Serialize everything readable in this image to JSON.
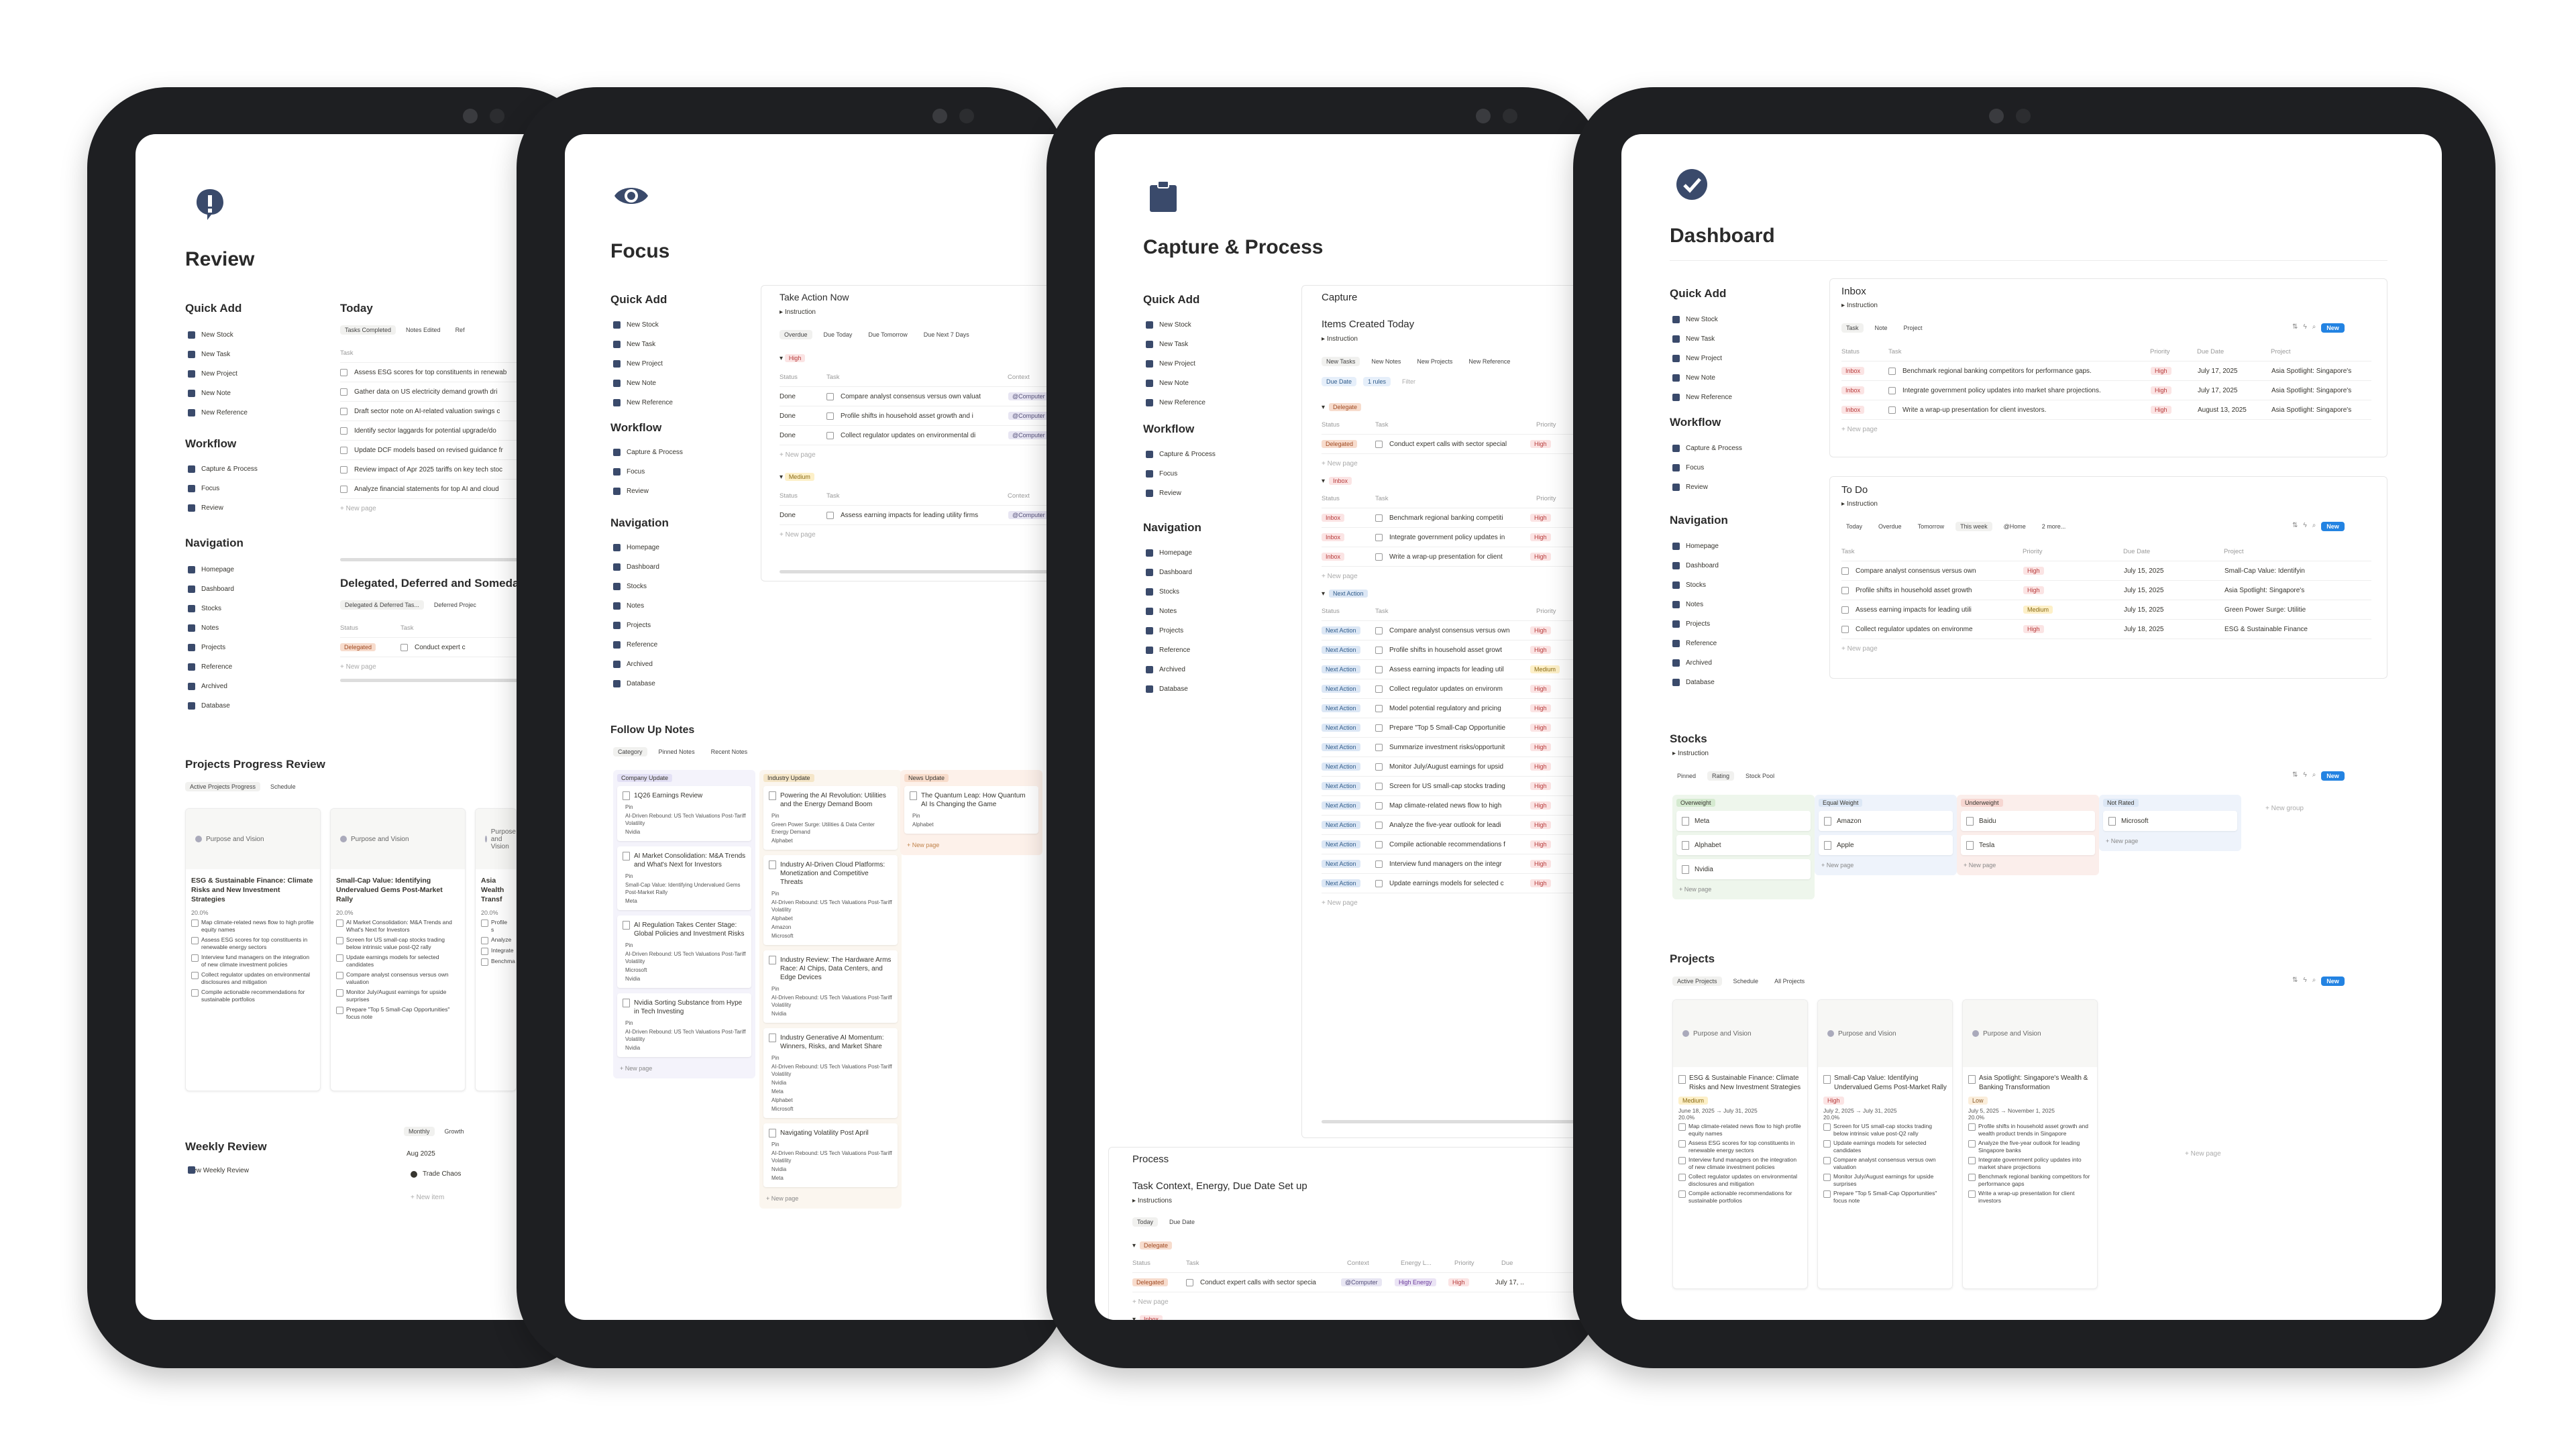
{
  "quick_add": [
    "New Stock",
    "New Task",
    "New Project",
    "New Note",
    "New Reference"
  ],
  "workflow": [
    "Capture & Process",
    "Focus",
    "Review"
  ],
  "navigation": [
    "Homepage",
    "Dashboard",
    "Stocks",
    "Notes",
    "Projects",
    "Reference",
    "Archived",
    "Database"
  ],
  "labels": {
    "quick_add": "Quick Add",
    "workflow": "Workflow",
    "navigation": "Navigation",
    "new_page": "+ New page",
    "instruction": "Instruction",
    "instructions": "Instructions",
    "new_group": "+ New group",
    "new_item": "+ New item",
    "new": "New",
    "status": "Status",
    "task": "Task",
    "priority": "Priority",
    "context": "Context",
    "energy": "Energy L...",
    "due": "Due",
    "due_date": "Due Date",
    "project": "Project",
    "high": "High",
    "medium": "Medium",
    "low": "Low",
    "done": "Done",
    "inbox": "Inbox",
    "delegate": "Delegate",
    "delegated": "Delegated",
    "next_action": "Next Action",
    "computer": "@Computer",
    "high_energy": "High Energy",
    "purpose": "Purpose and Vision"
  },
  "review": {
    "title": "Review",
    "today": "Today",
    "today_tabs": [
      "Tasks Completed",
      "Notes Edited",
      "Ref"
    ],
    "today_tasks": [
      "Assess ESG scores for top constituents in renewab",
      "Gather data on US electricity demand growth dri",
      "Draft sector note on AI-related valuation swings c",
      "Identify sector laggards for potential upgrade/do",
      "Update DCF models based on revised guidance fr",
      "Review impact of Apr 2025 tariffs on key tech stoc",
      "Analyze financial statements for top AI and cloud"
    ],
    "delegated_title": "Delegated, Deferred and Someday",
    "delegated_tabs": [
      "Delegated & Deferred Tas...",
      "Deferred Projec"
    ],
    "delegated_task": "Conduct expert c",
    "projects_title": "Projects Progress Review",
    "projects_tabs": [
      "Active Projects Progress",
      "Schedule"
    ],
    "proj_cards": [
      {
        "title": "ESG & Sustainable Finance: Climate Risks and New Investment Strategies",
        "pct": "20.0%",
        "items": [
          "Map climate-related news flow to high profile equity names",
          "Assess ESG scores for top constituents in renewable energy sectors",
          "Interview fund managers on the integration of new climate investment policies",
          "Collect regulator updates on environmental disclosures and mitigation",
          "Compile actionable recommendations for sustainable portfolios"
        ]
      },
      {
        "title": "Small-Cap Value: Identifying Undervalued Gems Post-Market Rally",
        "pct": "20.0%",
        "items": [
          "AI Market Consolidation: M&A Trends and What's Next for Investors",
          "Screen for US small-cap stocks trading below intrinsic value post-Q2 rally",
          "Update earnings models for selected candidates",
          "Compare analyst consensus versus own valuation",
          "Monitor July/August earnings for upside surprises",
          "Prepare \"Top 5 Small-Cap Opportunities\" focus note"
        ]
      },
      {
        "title": "Asia Wealth Transf",
        "pct": "20.0%",
        "items": [
          "Profile s",
          "Analyze",
          "Integrate",
          "Benchma"
        ]
      }
    ],
    "weekly_title": "Weekly Review",
    "weekly_btn": "New Weekly Review",
    "weekly_tabs": [
      "Monthly",
      "Growth"
    ],
    "weekly_month": "Aug 2025",
    "weekly_item": "Trade Chaos"
  },
  "focus": {
    "title": "Focus",
    "tan_title": "Take Action Now",
    "tan_tabs": [
      "Overdue",
      "Due Today",
      "Due Tomorrow",
      "Due Next 7 Days"
    ],
    "high_tasks": [
      "Compare analyst consensus versus own valuat",
      "Profile shifts in household asset growth and i",
      "Collect regulator updates on environmental di"
    ],
    "medium_task": "Assess earning impacts for leading utility firms",
    "fun_title": "Follow Up Notes",
    "fun_tabs": [
      "Category",
      "Pinned Notes",
      "Recent Notes"
    ],
    "cols": [
      {
        "name": "Company Update",
        "cards": [
          {
            "t": "1Q26 Earnings Review",
            "m": [
              "Pin",
              "AI-Driven Rebound: US Tech Valuations Post-Tariff Volatility",
              "Nvidia"
            ]
          },
          {
            "t": "AI Market Consolidation: M&A Trends and What's Next for Investors",
            "m": [
              "Pin",
              "Small-Cap Value: Identifying Undervalued Gems Post-Market Rally",
              "Meta"
            ]
          },
          {
            "t": "AI Regulation Takes Center Stage: Global Policies and Investment Risks",
            "m": [
              "Pin",
              "AI-Driven Rebound: US Tech Valuations Post-Tariff Volatility",
              "Microsoft",
              "Nvidia"
            ]
          },
          {
            "t": "Nvidia Sorting Substance from Hype in Tech Investing",
            "m": [
              "Pin",
              "AI-Driven Rebound: US Tech Valuations Post-Tariff Volatility",
              "Nvidia"
            ]
          }
        ]
      },
      {
        "name": "Industry Update",
        "cards": [
          {
            "t": "Powering the AI Revolution: Utilities and the Energy Demand Boom",
            "m": [
              "Pin",
              "Green Power Surge: Utilities & Data Center Energy Demand",
              "Alphabet"
            ]
          },
          {
            "t": "Industry AI-Driven Cloud Platforms: Monetization and Competitive Threats",
            "m": [
              "Pin",
              "AI-Driven Rebound: US Tech Valuations Post-Tariff Volatility",
              "Alphabet",
              "Amazon",
              "Microsoft"
            ]
          },
          {
            "t": "Industry Review: The Hardware Arms Race: AI Chips, Data Centers, and Edge Devices",
            "m": [
              "Pin",
              "AI-Driven Rebound: US Tech Valuations Post-Tariff Volatility",
              "Nvidia"
            ]
          },
          {
            "t": "Industry Generative AI Momentum: Winners, Risks, and Market Share",
            "m": [
              "Pin",
              "AI-Driven Rebound: US Tech Valuations Post-Tariff Volatility",
              "Nvidia",
              "Meta",
              "Alphabet",
              "Microsoft"
            ]
          },
          {
            "t": "Navigating Volatility Post April",
            "m": [
              "Pin",
              "AI-Driven Rebound: US Tech Valuations Post-Tariff Volatility",
              "Nvidia",
              "Meta"
            ]
          }
        ]
      },
      {
        "name": "News Update",
        "cards": [
          {
            "t": "The Quantum Leap: How Quantum AI Is Changing the Game",
            "m": [
              "Pin",
              "Alphabet"
            ]
          }
        ]
      }
    ]
  },
  "capture": {
    "title": "Capture & Process",
    "capture_title": "Capture",
    "icn_title": "Items Created Today",
    "icn_tabs": [
      "New Tasks",
      "New Notes",
      "New Projects",
      "New Reference"
    ],
    "filters": [
      "Due Date",
      "1 rules",
      "Filter"
    ],
    "delegate_task": "Conduct expert calls with sector special",
    "inbox_tasks": [
      "Benchmark regional banking competiti",
      "Integrate government policy updates in",
      "Write a wrap-up presentation for client"
    ],
    "na_tasks": [
      {
        "t": "Compare analyst consensus versus own",
        "p": "High"
      },
      {
        "t": "Profile shifts in household asset growt",
        "p": "High"
      },
      {
        "t": "Assess earning impacts for leading util",
        "p": "Medium"
      },
      {
        "t": "Collect regulator updates on environm",
        "p": "High"
      },
      {
        "t": "Model potential regulatory and pricing",
        "p": "High"
      },
      {
        "t": "Prepare \"Top 5 Small-Cap Opportunitie",
        "p": "High"
      },
      {
        "t": "Summarize investment risks/opportunit",
        "p": "High"
      },
      {
        "t": "Monitor July/August earnings for upsid",
        "p": "High"
      },
      {
        "t": "Screen for US small-cap stocks trading",
        "p": "High"
      },
      {
        "t": "Map climate-related news flow to high",
        "p": "High"
      },
      {
        "t": "Analyze the five-year outlook for leadi",
        "p": "High"
      },
      {
        "t": "Compile actionable recommendations f",
        "p": "High"
      },
      {
        "t": "Interview fund managers on the integr",
        "p": "High"
      },
      {
        "t": "Update earnings models for selected c",
        "p": "High"
      }
    ],
    "process_title": "Process",
    "tc_title": "Task Context, Energy, Due Date Set up",
    "tc_tabs": [
      "Today",
      "Due Date"
    ],
    "p_delegate_task": "Conduct expert calls with sector specia",
    "p_inbox_tasks": [
      "Benchmark regional banking competiti",
      "Integrate government policy updates i",
      "Write a wrap-up presentation for client"
    ],
    "due_vals": [
      "July 17, ..",
      "July 17, ..",
      "July 17, ..",
      "July 17, .."
    ]
  },
  "dashboard": {
    "title": "Dashboard",
    "inbox_title": "Inbox",
    "inbox_tabs": [
      "Task",
      "Note",
      "Project"
    ],
    "inbox_rows": [
      {
        "t": "Benchmark regional banking competitors for performance gaps.",
        "d": "July 17, 2025",
        "p": "Asia Spotlight: Singapore's"
      },
      {
        "t": "Integrate government policy updates into market share projections.",
        "d": "July 17, 2025",
        "p": "Asia Spotlight: Singapore's"
      },
      {
        "t": "Write a wrap-up presentation for client investors.",
        "d": "August 13, 2025",
        "p": "Asia Spotlight: Singapore's"
      }
    ],
    "todo_title": "To Do",
    "todo_tabs": [
      "Today",
      "Overdue",
      "Tomorrow",
      "This week",
      "@Home",
      "2 more..."
    ],
    "todo_rows": [
      {
        "t": "Compare analyst consensus versus own",
        "pr": "High",
        "d": "July 15, 2025",
        "p": "Small-Cap Value: Identifyin"
      },
      {
        "t": "Profile shifts in household asset growth",
        "pr": "High",
        "d": "July 15, 2025",
        "p": "Asia Spotlight: Singapore's"
      },
      {
        "t": "Assess earning impacts for leading utili",
        "pr": "Medium",
        "d": "July 15, 2025",
        "p": "Green Power Surge: Utilitie"
      },
      {
        "t": "Collect regulator updates on environme",
        "pr": "High",
        "d": "July 18, 2025",
        "p": "ESG & Sustainable Finance"
      }
    ],
    "stocks_title": "Stocks",
    "stocks_tabs": [
      "Pinned",
      "Rating",
      "Stock Pool"
    ],
    "ratings": [
      {
        "n": "Overweight",
        "s": [
          "Meta",
          "Alphabet",
          "Nvidia"
        ]
      },
      {
        "n": "Equal Weight",
        "s": [
          "Amazon",
          "Apple"
        ]
      },
      {
        "n": "Underweight",
        "s": [
          "Baidu",
          "Tesla"
        ]
      },
      {
        "n": "Not Rated",
        "s": [
          "Microsoft"
        ]
      }
    ],
    "projects_title": "Projects",
    "projects_tabs": [
      "Active Projects",
      "Schedule",
      "All Projects"
    ],
    "pcards": [
      {
        "t": "ESG & Sustainable Finance: Climate Risks and New Investment Strategies",
        "pr": "Medium",
        "dates": "June 18, 2025 → July 31, 2025",
        "pct": "20.0%",
        "items": [
          "Map climate-related news flow to high profile equity names",
          "Assess ESG scores for top constituents in renewable energy sectors",
          "Interview fund managers on the integration of new climate investment policies",
          "Collect regulator updates on environmental disclosures and mitigation",
          "Compile actionable recommendations for sustainable portfolios"
        ]
      },
      {
        "t": "Small-Cap Value: Identifying Undervalued Gems Post-Market Rally",
        "pr": "High",
        "dates": "July 2, 2025 → July 31, 2025",
        "pct": "20.0%",
        "items": [
          "Screen for US small-cap stocks trading below intrinsic value post-Q2 rally",
          "Update earnings models for selected candidates",
          "Compare analyst consensus versus own valuation",
          "Monitor July/August earnings for upside surprises",
          "Prepare \"Top 5 Small-Cap Opportunities\" focus note"
        ]
      },
      {
        "t": "Asia Spotlight: Singapore's Wealth & Banking Transformation",
        "pr": "Low",
        "dates": "July 5, 2025 → November 1, 2025",
        "pct": "20.0%",
        "items": [
          "Profile shifts in household asset growth and wealth product trends in Singapore",
          "Analyze the five-year outlook for leading Singapore banks",
          "Integrate government policy updates into market share projections",
          "Benchmark regional banking competitors for performance gaps",
          "Write a wrap-up presentation for client investors"
        ]
      }
    ]
  }
}
